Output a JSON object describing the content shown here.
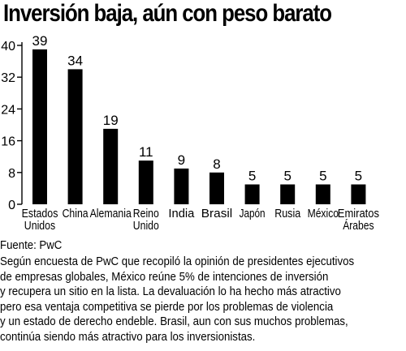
{
  "title": "Inversión baja, aún con peso barato",
  "chart_data": {
    "type": "bar",
    "categories": [
      [
        "Estados",
        "Unidos"
      ],
      [
        "China"
      ],
      [
        "Alemania"
      ],
      [
        "Reino",
        "Unido"
      ],
      [
        "India"
      ],
      [
        "Brasil"
      ],
      [
        "Japón"
      ],
      [
        "Rusia"
      ],
      [
        "México"
      ],
      [
        "Emiratos",
        "Árabes"
      ]
    ],
    "values": [
      39,
      34,
      19,
      11,
      9,
      8,
      5,
      5,
      5,
      5
    ],
    "value_labels": [
      "39",
      "34",
      "19",
      "11",
      "9",
      "8",
      "5",
      "5",
      "5",
      "5"
    ],
    "yticks": [
      0,
      8,
      16,
      24,
      32,
      40
    ],
    "ylim": [
      0,
      40
    ],
    "bar_color": "#000000",
    "grid": false
  },
  "source": "Fuente: PwC",
  "description": [
    "Según encuesta de PwC que recopiló la opinión de presidentes ejecutivos",
    "de empresas globales, México reúne 5% de intenciones de inversión",
    "y recupera un sitio en la lista. La devaluación lo ha hecho más atractivo",
    "pero esa ventaja competitiva se pierde por los problemas de violencia",
    "y un estado de derecho endeble. Brasil, aun con sus muchos problemas,",
    "continúa siendo más atractivo para los inversionistas."
  ]
}
